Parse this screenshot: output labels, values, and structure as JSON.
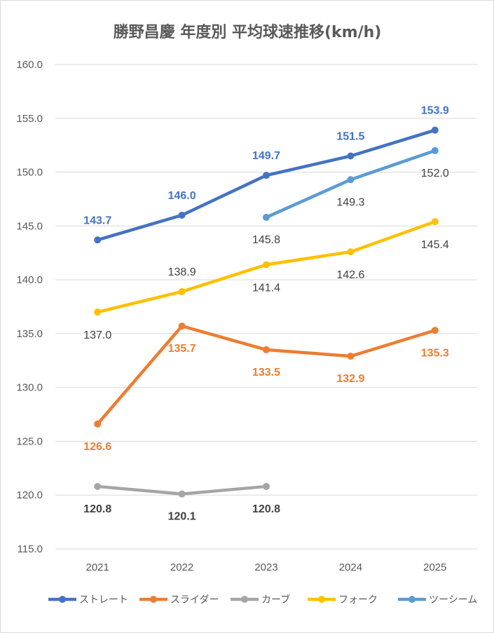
{
  "chart_data": {
    "type": "line",
    "title": "勝野昌慶 年度別 平均球速推移(km/h)",
    "xlabel": "",
    "ylabel": "",
    "categories": [
      "2021",
      "2022",
      "2023",
      "2024",
      "2025"
    ],
    "ylim": [
      115.0,
      160.0
    ],
    "yticks": [
      "160.0",
      "155.0",
      "150.0",
      "145.0",
      "140.0",
      "135.0",
      "130.0",
      "125.0",
      "120.0",
      "115.0"
    ],
    "grid": "horizontal",
    "legend": "bottom",
    "series": [
      {
        "name": "ストレート",
        "color": "#4472C4",
        "label_color": "#4472C4",
        "label_pos": "above",
        "values": [
          143.7,
          146.0,
          149.7,
          151.5,
          153.9
        ],
        "labels": [
          "143.7",
          "146.0",
          "149.7",
          "151.5",
          "153.9"
        ]
      },
      {
        "name": "スライダー",
        "color": "#ED7D31",
        "label_color": "#ED7D31",
        "label_pos": "below",
        "values": [
          126.6,
          135.7,
          133.5,
          132.9,
          135.3
        ],
        "labels": [
          "126.6",
          "135.7",
          "133.5",
          "132.9",
          "135.3"
        ]
      },
      {
        "name": "カーブ",
        "color": "#A5A5A5",
        "label_color": "#404040",
        "label_pos": "below",
        "values": [
          120.8,
          120.1,
          120.8,
          null,
          null
        ],
        "labels": [
          "120.8",
          "120.1",
          "120.8",
          "",
          ""
        ]
      },
      {
        "name": "フォーク",
        "color": "#FFC000",
        "label_color": "#404040",
        "label_pos": "mixed",
        "values": [
          137.0,
          138.9,
          141.4,
          142.6,
          145.4
        ],
        "labels": [
          "137.0",
          "138.9",
          "141.4",
          "142.6",
          "145.4"
        ]
      },
      {
        "name": "ツーシーム",
        "color": "#5B9BD5",
        "label_color": "#404040",
        "label_pos": "below",
        "values": [
          null,
          null,
          145.8,
          149.3,
          152.0
        ],
        "labels": [
          "",
          "",
          "145.8",
          "149.3",
          "152.0"
        ]
      }
    ]
  }
}
